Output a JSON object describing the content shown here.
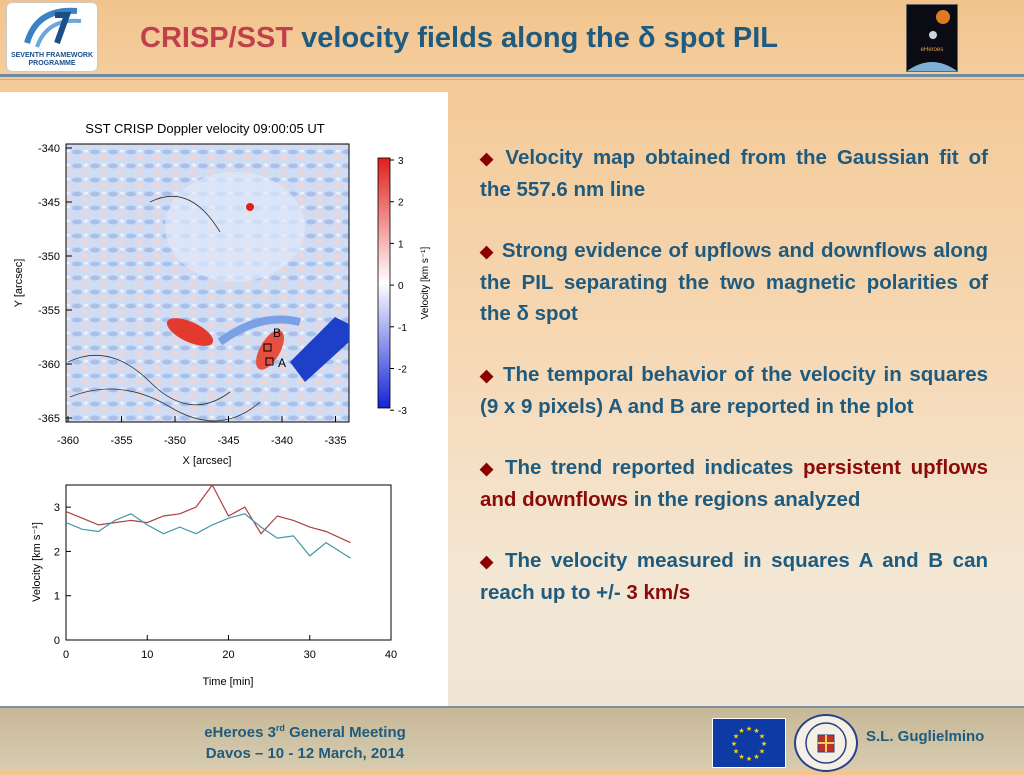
{
  "header": {
    "title_accent": "CRISP/SST",
    "title_rest": "velocity fields along the δ spot PIL",
    "fp7_logo_text": "SEVENTH FRAMEWORK PROGRAMME",
    "eheroes_logo_text": "eHeroes"
  },
  "doppler_map": {
    "title": "SST CRISP Doppler velocity 09:00:05 UT",
    "ylabel": "Y [arcsec]",
    "xlabel": "X [arcsec]",
    "y_ticks": [
      "-340",
      "-345",
      "-350",
      "-355",
      "-360",
      "-365"
    ],
    "x_ticks": [
      "-360",
      "-355",
      "-350",
      "-345",
      "-340",
      "-335"
    ],
    "colorbar_label": "Velocity [km s⁻¹]",
    "colorbar_ticks": [
      "3",
      "2",
      "1",
      "0",
      "-1",
      "-2",
      "-3"
    ],
    "colorbar_colors": [
      "#e0201c",
      "#ffffff",
      "#1424d6"
    ],
    "marker_a": "A",
    "marker_b": "B"
  },
  "chart_data": {
    "type": "line",
    "title": "",
    "xlabel": "Time [min]",
    "ylabel": "Velocity [km s⁻¹]",
    "xlim": [
      0,
      40
    ],
    "ylim": [
      0,
      3.5
    ],
    "x_ticks": [
      "0",
      "10",
      "20",
      "30",
      "40"
    ],
    "y_ticks": [
      "0",
      "1",
      "2",
      "3"
    ],
    "series": [
      {
        "color": "#b04040",
        "x": [
          0,
          2,
          4,
          6,
          8,
          10,
          12,
          14,
          16,
          18,
          20,
          22,
          24,
          26,
          28,
          30,
          32,
          35
        ],
        "values": [
          2.9,
          2.75,
          2.6,
          2.65,
          2.7,
          2.65,
          2.8,
          2.85,
          3.0,
          3.5,
          2.8,
          3.0,
          2.4,
          2.8,
          2.7,
          2.55,
          2.45,
          2.2
        ]
      },
      {
        "color": "#3c9aa8",
        "x": [
          0,
          2,
          4,
          6,
          8,
          10,
          12,
          14,
          16,
          18,
          20,
          22,
          24,
          26,
          28,
          30,
          32,
          35
        ],
        "values": [
          2.65,
          2.5,
          2.45,
          2.7,
          2.85,
          2.6,
          2.4,
          2.55,
          2.4,
          2.6,
          2.75,
          2.85,
          2.55,
          2.3,
          2.35,
          1.9,
          2.2,
          1.85
        ]
      }
    ]
  },
  "bullets": [
    {
      "text": "Velocity map obtained from the Gaussian fit of the 557.6 nm line"
    },
    {
      "text": "Strong evidence of upflows and downflows along the PIL separating the two magnetic polarities of the δ spot"
    },
    {
      "text": "The temporal behavior of the velocity in squares (9 x 9 pixels) A and B are reported in the plot"
    },
    {
      "pre": "The trend reported indicates ",
      "em": "persistent upflows and downflows",
      "post": " in the regions analyzed"
    },
    {
      "pre": "The velocity measured in squares A and B can reach up to +/- ",
      "em": "3 km/s",
      "post": ""
    }
  ],
  "bullet_marker": "◆",
  "footer": {
    "meeting_pre": "eHeroes 3",
    "meeting_sup": "rd",
    "meeting_post": " General Meeting",
    "dates": "Davos – 10 - 12 March, 2014",
    "author": "S.L. Guglielmino"
  }
}
